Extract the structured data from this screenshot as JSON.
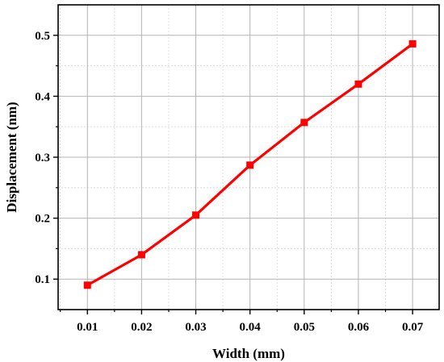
{
  "chart_data": {
    "type": "line",
    "xlabel": "Width (mm)",
    "ylabel": "Displacement (nm)",
    "x": [
      0.01,
      0.02,
      0.03,
      0.04,
      0.05,
      0.06,
      0.07
    ],
    "x_tick_labels": [
      "0.01",
      "0.02",
      "0.03",
      "0.04",
      "0.05",
      "0.06",
      "0.07"
    ],
    "y_tick_labels": [
      "0.1",
      "0.2",
      "0.3",
      "0.4",
      "0.5"
    ],
    "y_ticks": [
      0.1,
      0.2,
      0.3,
      0.4,
      0.5
    ],
    "xlim": [
      0.0046,
      0.0749
    ],
    "ylim": [
      0.05,
      0.55
    ],
    "grid": true,
    "series": [
      {
        "values": [
          0.09,
          0.14,
          0.205,
          0.287,
          0.357,
          0.42,
          0.486
        ],
        "color": "#ff0000",
        "marker": "square"
      }
    ]
  }
}
